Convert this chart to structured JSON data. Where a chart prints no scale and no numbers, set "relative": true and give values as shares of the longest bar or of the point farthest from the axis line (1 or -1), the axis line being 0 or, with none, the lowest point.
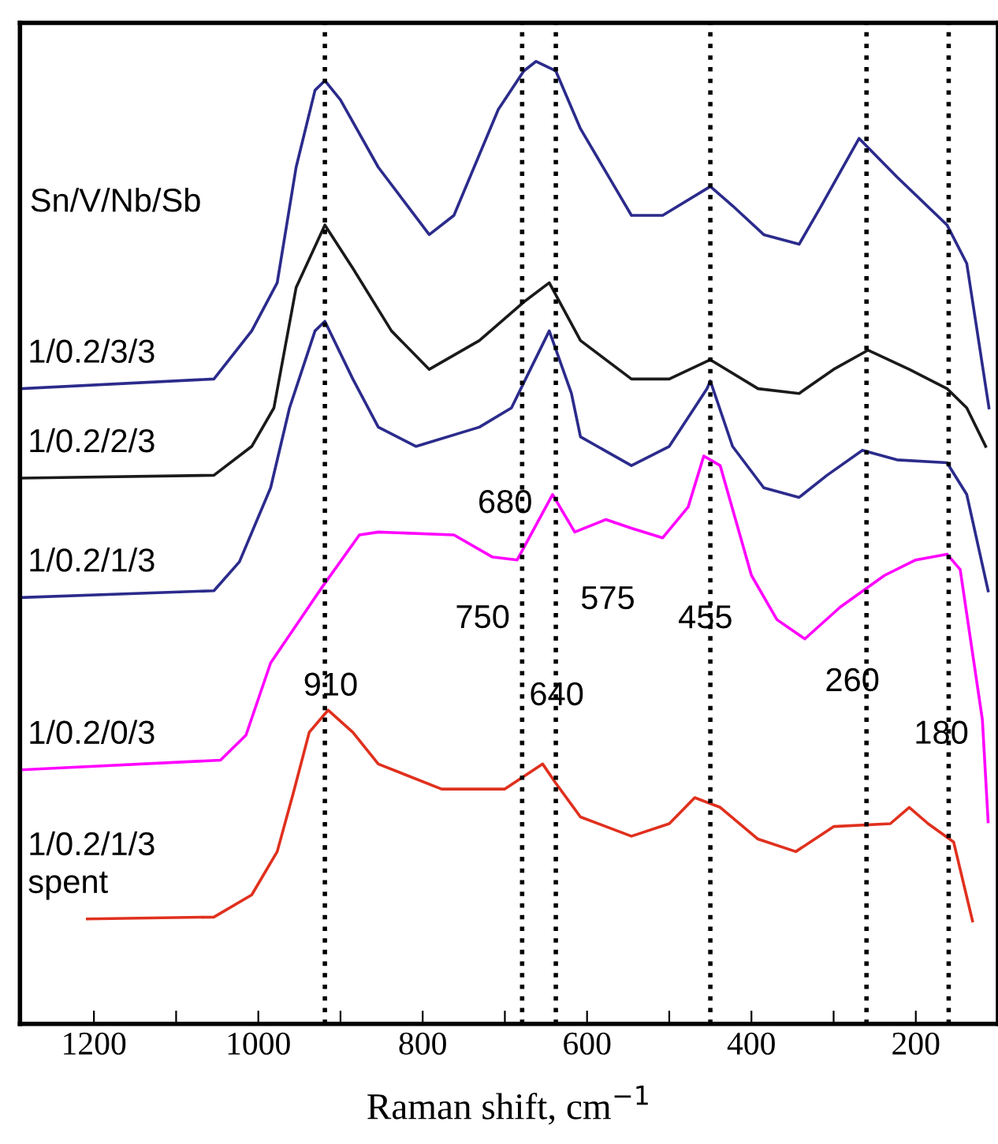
{
  "chart_data": {
    "type": "line",
    "relative": true,
    "xlabel": "Raman shift, cm$^{−1}$",
    "xlim": [
      1290,
      100
    ],
    "xticks": [
      {
        "value": 1200,
        "label": "1200"
      },
      {
        "value": 1100,
        "label": null
      },
      {
        "value": 1000,
        "label": "1000"
      },
      {
        "value": 900,
        "label": null
      },
      {
        "value": 800,
        "label": "800"
      },
      {
        "value": 700,
        "label": null
      },
      {
        "value": 600,
        "label": "600"
      },
      {
        "value": 500,
        "label": null
      },
      {
        "value": 400,
        "label": "400"
      },
      {
        "value": 300,
        "label": null
      },
      {
        "value": 200,
        "label": "200"
      }
    ],
    "tick_labels": "x",
    "grid": false,
    "legend": false,
    "marker": "none",
    "line_style": "solid",
    "series": [
      {
        "name": "1/0.2/3/3",
        "color": "#2b2b8c",
        "x": [
          1288,
          1054,
          1008,
          977,
          954,
          931,
          919,
          900,
          854,
          792,
          762,
          708,
          677,
          662,
          638,
          608,
          546,
          508,
          450,
          423,
          385,
          342,
          315,
          269,
          223,
          162,
          138,
          111
        ],
        "values": [
          0.66,
          0.67,
          0.72,
          0.77,
          0.89,
          0.97,
          0.98,
          0.96,
          0.89,
          0.82,
          0.84,
          0.95,
          0.99,
          1.0,
          0.99,
          0.93,
          0.84,
          0.84,
          0.87,
          0.85,
          0.82,
          0.81,
          0.85,
          0.92,
          0.88,
          0.83,
          0.79,
          0.64
        ]
      },
      {
        "name": "1/0.2/2/3",
        "color": "#1a1a1a",
        "x": [
          1288,
          1054,
          1008,
          981,
          954,
          919,
          885,
          838,
          792,
          731,
          677,
          646,
          608,
          546,
          500,
          450,
          392,
          342,
          300,
          258,
          208,
          162,
          138,
          115
        ],
        "values": [
          0.567,
          0.57,
          0.6,
          0.64,
          0.765,
          0.83,
          0.785,
          0.72,
          0.68,
          0.71,
          0.75,
          0.77,
          0.71,
          0.67,
          0.67,
          0.69,
          0.66,
          0.655,
          0.68,
          0.7,
          0.68,
          0.66,
          0.64,
          0.6
        ]
      },
      {
        "name": "1/0.2/1/3",
        "color": "#2b2b8c",
        "x": [
          1288,
          1054,
          1023,
          985,
          962,
          931,
          919,
          885,
          854,
          808,
          731,
          692,
          646,
          619,
          608,
          546,
          500,
          454,
          450,
          423,
          385,
          342,
          308,
          265,
          223,
          162,
          138,
          112
        ],
        "values": [
          0.443,
          0.45,
          0.48,
          0.557,
          0.64,
          0.72,
          0.73,
          0.67,
          0.62,
          0.6,
          0.62,
          0.64,
          0.72,
          0.655,
          0.61,
          0.58,
          0.6,
          0.66,
          0.668,
          0.6,
          0.557,
          0.547,
          0.57,
          0.596,
          0.586,
          0.583,
          0.55,
          0.45
        ]
      },
      {
        "name": "1/0.2/0/3",
        "color": "#ff00ff",
        "x": [
          1288,
          1046,
          1015,
          985,
          923,
          877,
          854,
          762,
          715,
          685,
          642,
          615,
          577,
          546,
          508,
          477,
          458,
          438,
          400,
          369,
          335,
          292,
          238,
          200,
          162,
          146,
          119,
          112
        ],
        "values": [
          0.264,
          0.274,
          0.3,
          0.375,
          0.453,
          0.508,
          0.511,
          0.508,
          0.485,
          0.482,
          0.55,
          0.511,
          0.524,
          0.515,
          0.505,
          0.537,
          0.59,
          0.58,
          0.466,
          0.42,
          0.4,
          0.433,
          0.466,
          0.482,
          0.488,
          0.472,
          0.316,
          0.21
        ]
      },
      {
        "name": "1/0.2/1/3\nspent",
        "color": "#e0301e",
        "x": [
          1208,
          1054,
          1008,
          977,
          958,
          938,
          915,
          885,
          854,
          777,
          700,
          654,
          638,
          608,
          546,
          500,
          469,
          438,
          392,
          346,
          300,
          231,
          208,
          185,
          154,
          131
        ],
        "values": [
          0.109,
          0.111,
          0.134,
          0.179,
          0.238,
          0.303,
          0.326,
          0.303,
          0.27,
          0.244,
          0.244,
          0.27,
          0.25,
          0.215,
          0.195,
          0.208,
          0.235,
          0.225,
          0.192,
          0.179,
          0.205,
          0.208,
          0.225,
          0.208,
          0.189,
          0.107
        ]
      }
    ],
    "ref_lines": [
      {
        "axis": "x",
        "value": 919,
        "line_style": "dotted",
        "color": "#000000"
      },
      {
        "axis": "x",
        "value": 679,
        "line_style": "dotted",
        "color": "#000000"
      },
      {
        "axis": "x",
        "value": 638,
        "line_style": "dotted",
        "color": "#000000"
      },
      {
        "axis": "x",
        "value": 450,
        "line_style": "dotted",
        "color": "#000000"
      },
      {
        "axis": "x",
        "value": 260,
        "line_style": "dotted",
        "color": "#000000"
      },
      {
        "axis": "x",
        "value": 160,
        "line_style": "dotted",
        "color": "#000000"
      }
    ],
    "annotations": [
      "Sn/V/Nb/Sb",
      {
        "text": "910",
        "x": 912,
        "y": 0.35
      },
      {
        "text": "640",
        "x": 637,
        "y": 0.34
      },
      "680",
      "750",
      "575",
      {
        "text": "455",
        "x": 456,
        "y": 0.42
      },
      "260",
      {
        "text": "180",
        "x": 169,
        "y": 0.3
      }
    ]
  }
}
